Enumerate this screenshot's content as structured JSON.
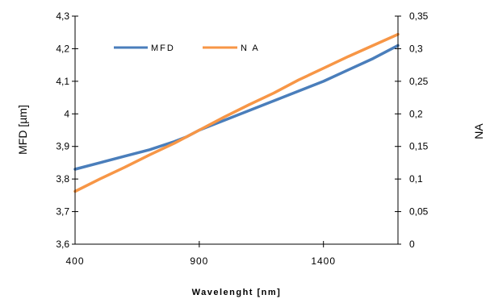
{
  "chart_data": {
    "type": "line",
    "title": "",
    "xlabel": "Wavelenght [nm]",
    "ylabel_left": "MFD [µm]",
    "ylabel_right": "NA",
    "xlim": [
      400,
      1700
    ],
    "ylim_left": [
      3.6,
      4.3
    ],
    "ylim_right": [
      0,
      0.35
    ],
    "x_ticks": [
      400,
      900,
      1400
    ],
    "x_tick_labels": [
      "400",
      "900",
      "1400"
    ],
    "y_left_ticks": [
      3.6,
      3.7,
      3.8,
      3.9,
      4.0,
      4.1,
      4.2,
      4.3
    ],
    "y_left_tick_labels": [
      "3,6",
      "3,7",
      "3,8",
      "3,9",
      "4",
      "4,1",
      "4,2",
      "4,3"
    ],
    "y_right_ticks": [
      0,
      0.05,
      0.1,
      0.15,
      0.2,
      0.25,
      0.3,
      0.35
    ],
    "y_right_tick_labels": [
      "0",
      "0,05",
      "0,1",
      "0,15",
      "0,2",
      "0,25",
      "0,3",
      "0,35"
    ],
    "grid": false,
    "legend_position": "top-left",
    "series": [
      {
        "name": "MFD",
        "axis": "left",
        "color": "#4a7ebb",
        "x": [
          400,
          500,
          600,
          700,
          800,
          850,
          900,
          1000,
          1100,
          1200,
          1300,
          1400,
          1500,
          1600,
          1700
        ],
        "y": [
          3.83,
          3.85,
          3.87,
          3.89,
          3.915,
          3.93,
          3.95,
          3.98,
          4.01,
          4.04,
          4.07,
          4.1,
          4.135,
          4.17,
          4.21
        ]
      },
      {
        "name": "N A",
        "axis": "right",
        "color": "#f79646",
        "x": [
          400,
          500,
          600,
          700,
          800,
          900,
          1000,
          1100,
          1200,
          1300,
          1400,
          1500,
          1600,
          1700
        ],
        "y": [
          0.081,
          0.1,
          0.118,
          0.137,
          0.155,
          0.175,
          0.195,
          0.214,
          0.232,
          0.252,
          0.27,
          0.288,
          0.305,
          0.322
        ]
      }
    ]
  }
}
